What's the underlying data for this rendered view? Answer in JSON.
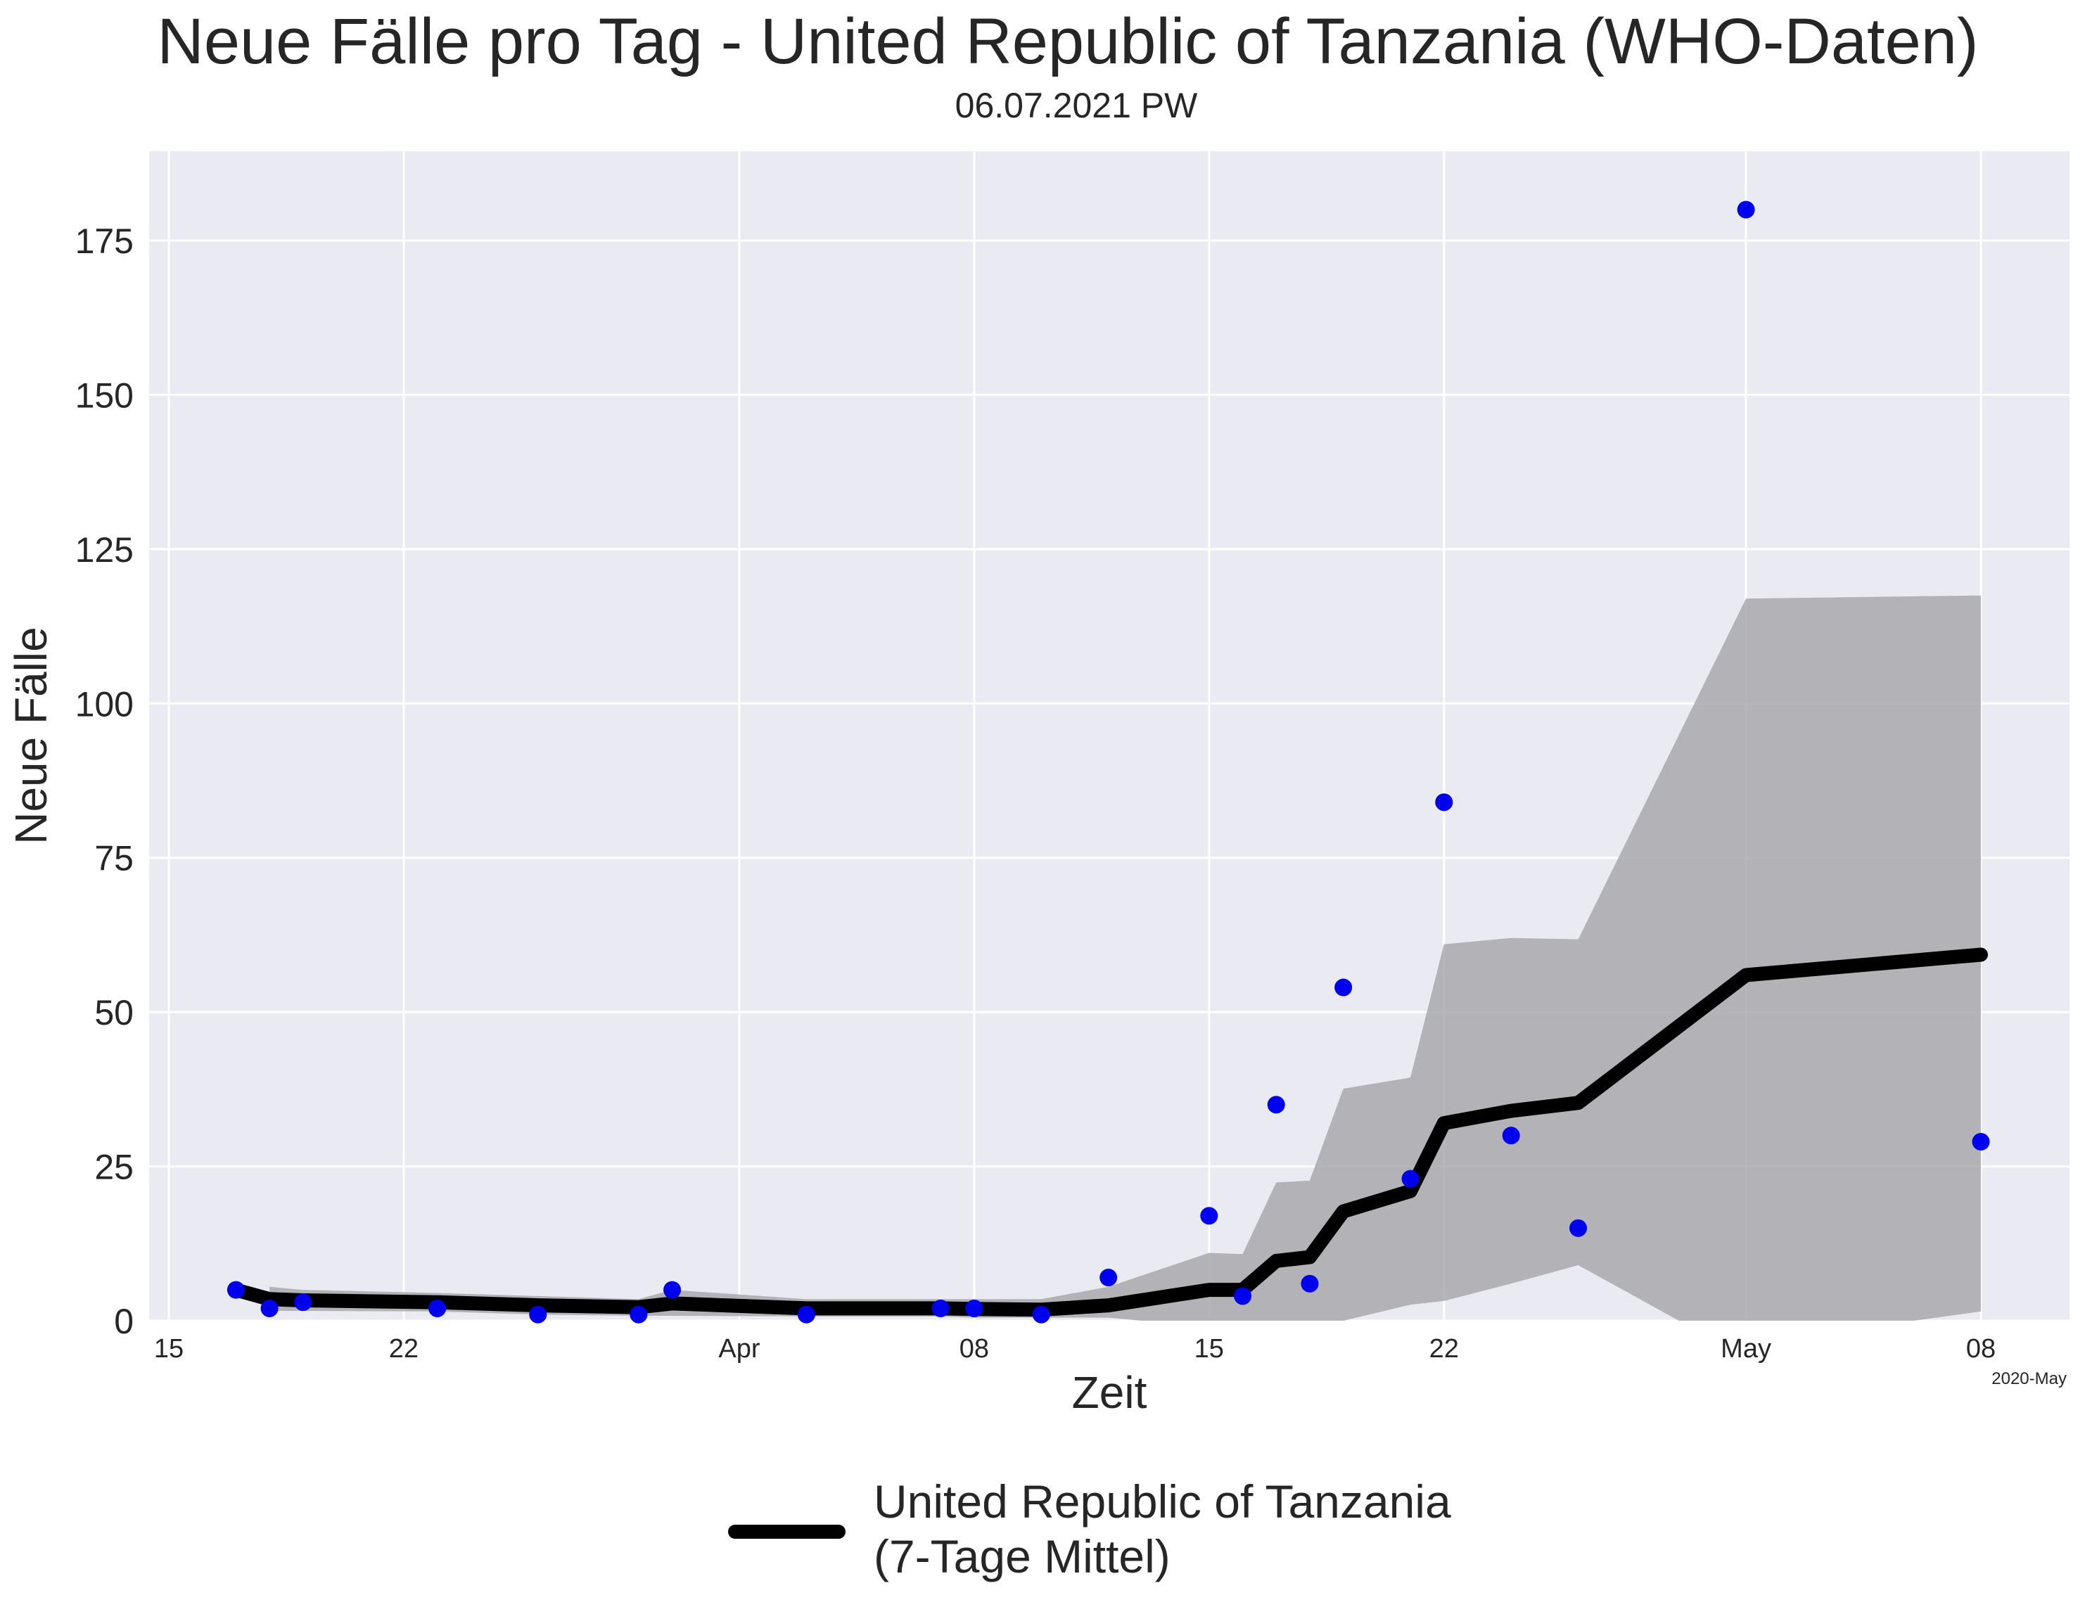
{
  "chart_data": {
    "type": "line",
    "title": "Neue Fälle pro Tag - United Republic of Tanzania (WHO-Daten)",
    "subtitle": "06.07.2021 PW",
    "xlabel": "Zeit",
    "ylabel": "Neue Fälle",
    "x_offset_label": "2020-May",
    "x_range": [
      "2020-03-15",
      "2020-05-10"
    ],
    "ylim": [
      0,
      190
    ],
    "y_ticks": [
      0,
      25,
      50,
      75,
      100,
      125,
      150,
      175
    ],
    "x_ticks": [
      {
        "date": "2020-03-15",
        "label": "15"
      },
      {
        "date": "2020-03-22",
        "label": "22"
      },
      {
        "date": "2020-04-01",
        "label": "Apr"
      },
      {
        "date": "2020-04-08",
        "label": "08"
      },
      {
        "date": "2020-04-15",
        "label": "15"
      },
      {
        "date": "2020-04-22",
        "label": "22"
      },
      {
        "date": "2020-05-01",
        "label": "May"
      },
      {
        "date": "2020-05-08",
        "label": "08"
      }
    ],
    "grid": true,
    "legend_position": "bottom-center",
    "colors": {
      "background": "#eaeaf2",
      "grid": "#ffffff",
      "points": "#0000ee",
      "line": "#000000",
      "band": "#a9a9ad"
    },
    "series": [
      {
        "kind": "scatter",
        "points": [
          {
            "x": "2020-03-17",
            "y": 5
          },
          {
            "x": "2020-03-18",
            "y": 2
          },
          {
            "x": "2020-03-19",
            "y": 3
          },
          {
            "x": "2020-03-23",
            "y": 2
          },
          {
            "x": "2020-03-26",
            "y": 1
          },
          {
            "x": "2020-03-29",
            "y": 1
          },
          {
            "x": "2020-03-30",
            "y": 5
          },
          {
            "x": "2020-04-03",
            "y": 1
          },
          {
            "x": "2020-04-07",
            "y": 2
          },
          {
            "x": "2020-04-08",
            "y": 2
          },
          {
            "x": "2020-04-10",
            "y": 1
          },
          {
            "x": "2020-04-12",
            "y": 7
          },
          {
            "x": "2020-04-15",
            "y": 17
          },
          {
            "x": "2020-04-16",
            "y": 4
          },
          {
            "x": "2020-04-17",
            "y": 35
          },
          {
            "x": "2020-04-18",
            "y": 6
          },
          {
            "x": "2020-04-19",
            "y": 54
          },
          {
            "x": "2020-04-21",
            "y": 23
          },
          {
            "x": "2020-04-22",
            "y": 84
          },
          {
            "x": "2020-04-24",
            "y": 30
          },
          {
            "x": "2020-04-26",
            "y": 15
          },
          {
            "x": "2020-04-31",
            "y": 180
          },
          {
            "x": "2020-05-08",
            "y": 29
          }
        ]
      },
      {
        "kind": "line",
        "name": "United Republic of Tanzania",
        "name_line2": "(7-Tage Mittel)",
        "points": [
          {
            "x": "2020-03-17",
            "y": 5
          },
          {
            "x": "2020-03-18",
            "y": 3.5
          },
          {
            "x": "2020-03-19",
            "y": 3.3
          },
          {
            "x": "2020-03-23",
            "y": 3
          },
          {
            "x": "2020-03-26",
            "y": 2.5
          },
          {
            "x": "2020-03-29",
            "y": 2.2
          },
          {
            "x": "2020-03-30",
            "y": 2.8
          },
          {
            "x": "2020-04-03",
            "y": 2
          },
          {
            "x": "2020-04-07",
            "y": 2
          },
          {
            "x": "2020-04-08",
            "y": 1.9
          },
          {
            "x": "2020-04-10",
            "y": 1.8
          },
          {
            "x": "2020-04-12",
            "y": 2.5
          },
          {
            "x": "2020-04-15",
            "y": 5
          },
          {
            "x": "2020-04-16",
            "y": 5
          },
          {
            "x": "2020-04-17",
            "y": 9.7
          },
          {
            "x": "2020-04-18",
            "y": 10.3
          },
          {
            "x": "2020-04-19",
            "y": 17.7
          },
          {
            "x": "2020-04-21",
            "y": 21
          },
          {
            "x": "2020-04-22",
            "y": 32
          },
          {
            "x": "2020-04-24",
            "y": 34
          },
          {
            "x": "2020-04-26",
            "y": 35.3
          },
          {
            "x": "2020-04-31",
            "y": 56
          },
          {
            "x": "2020-05-08",
            "y": 59.3
          }
        ]
      },
      {
        "kind": "band",
        "upper": [
          {
            "x": "2020-03-18",
            "y": 5.5
          },
          {
            "x": "2020-03-19",
            "y": 5
          },
          {
            "x": "2020-03-23",
            "y": 4.5
          },
          {
            "x": "2020-03-26",
            "y": 4
          },
          {
            "x": "2020-03-29",
            "y": 3.5
          },
          {
            "x": "2020-03-30",
            "y": 5
          },
          {
            "x": "2020-04-03",
            "y": 3.5
          },
          {
            "x": "2020-04-07",
            "y": 3.5
          },
          {
            "x": "2020-04-08",
            "y": 3.5
          },
          {
            "x": "2020-04-10",
            "y": 3.5
          },
          {
            "x": "2020-04-12",
            "y": 5.5
          },
          {
            "x": "2020-04-15",
            "y": 11
          },
          {
            "x": "2020-04-16",
            "y": 10.8
          },
          {
            "x": "2020-04-17",
            "y": 22.4
          },
          {
            "x": "2020-04-18",
            "y": 22.7
          },
          {
            "x": "2020-04-19",
            "y": 37.6
          },
          {
            "x": "2020-04-21",
            "y": 39.4
          },
          {
            "x": "2020-04-22",
            "y": 61
          },
          {
            "x": "2020-04-24",
            "y": 62
          },
          {
            "x": "2020-04-26",
            "y": 61.8
          },
          {
            "x": "2020-04-31",
            "y": 117
          },
          {
            "x": "2020-05-08",
            "y": 117.5
          }
        ],
        "lower": [
          {
            "x": "2020-05-08",
            "y": 1.5
          },
          {
            "x": "2020-05-06",
            "y": 0
          },
          {
            "x": "2020-04-29",
            "y": 0
          },
          {
            "x": "2020-04-26",
            "y": 9
          },
          {
            "x": "2020-04-24",
            "y": 6
          },
          {
            "x": "2020-04-22",
            "y": 3.2
          },
          {
            "x": "2020-04-21",
            "y": 2.6
          },
          {
            "x": "2020-04-19",
            "y": 0
          },
          {
            "x": "2020-04-18",
            "y": 0
          },
          {
            "x": "2020-04-17",
            "y": 0
          },
          {
            "x": "2020-04-16",
            "y": 0
          },
          {
            "x": "2020-04-15",
            "y": 0
          },
          {
            "x": "2020-04-13",
            "y": 0
          },
          {
            "x": "2020-04-12",
            "y": 0.5
          },
          {
            "x": "2020-04-10",
            "y": 0.5
          },
          {
            "x": "2020-04-08",
            "y": 0.5
          },
          {
            "x": "2020-04-07",
            "y": 0.7
          },
          {
            "x": "2020-04-03",
            "y": 0.7
          },
          {
            "x": "2020-03-30",
            "y": 0.8
          },
          {
            "x": "2020-03-29",
            "y": 0.8
          },
          {
            "x": "2020-03-26",
            "y": 1
          },
          {
            "x": "2020-03-23",
            "y": 1.5
          },
          {
            "x": "2020-03-19",
            "y": 1.6
          },
          {
            "x": "2020-03-18",
            "y": 1.6
          }
        ]
      }
    ]
  }
}
